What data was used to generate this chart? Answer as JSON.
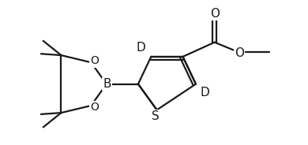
{
  "bg_color": "#ffffff",
  "line_color": "#1a1a1a",
  "line_width": 1.6,
  "font_size_atoms": 10,
  "figsize": [
    3.9,
    1.84
  ],
  "dpi": 100,
  "xlim": [
    0,
    10
  ],
  "ylim": [
    0,
    5
  ],
  "th_S": [
    5.1,
    1.2
  ],
  "th_C2": [
    4.45,
    2.1
  ],
  "th_C3": [
    4.9,
    3.05
  ],
  "th_C4": [
    6.0,
    3.05
  ],
  "th_C5": [
    6.45,
    2.1
  ],
  "Bx": 3.35,
  "By": 2.1,
  "O1x": 2.82,
  "O1y": 2.85,
  "O2x": 2.82,
  "O2y": 1.35,
  "C1x": 1.78,
  "C1y": 3.1,
  "C2bx": 1.78,
  "C2by": 1.1,
  "CCx": 7.1,
  "CCy": 3.55,
  "OCx": 7.1,
  "OCy": 4.35,
  "OEx": 7.95,
  "OEy": 3.2,
  "MeCx": 9.0,
  "MeCy": 3.2
}
